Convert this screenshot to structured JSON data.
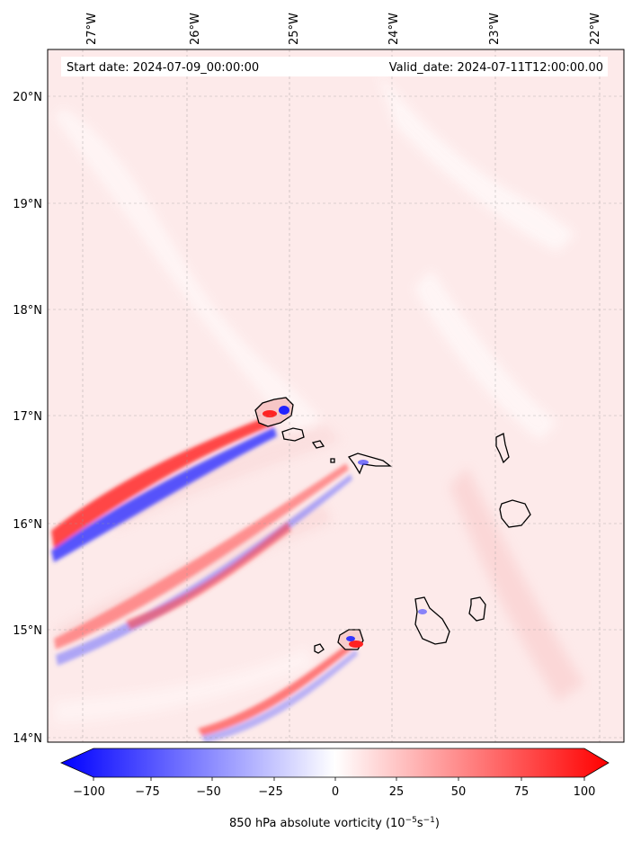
{
  "header": {
    "start_date": "Start date: 2024-07-09_00:00:00",
    "valid_date": "Valid_date: 2024-07-11T12:00:00.00"
  },
  "lon_ticks": [
    "27°W",
    "26°W",
    "25°W",
    "24°W",
    "23°W",
    "22°W"
  ],
  "lat_ticks": [
    "20°N",
    "19°N",
    "18°N",
    "17°N",
    "16°N",
    "15°N",
    "14°N"
  ],
  "colorbar": {
    "tick_labels": [
      "−100",
      "−75",
      "−50",
      "−25",
      "0",
      "25",
      "50",
      "75",
      "100"
    ],
    "label": "850 hPa absolute vorticity (10",
    "label_exp1": "−5",
    "label_mid": "s",
    "label_exp2": "−1",
    "label_close": ")",
    "min": -100,
    "max": 100
  },
  "colors": {
    "negative": "#0000ff",
    "positive": "#ff0000",
    "neutral": "#ffffff",
    "background_tint": "#fde4e4"
  }
}
